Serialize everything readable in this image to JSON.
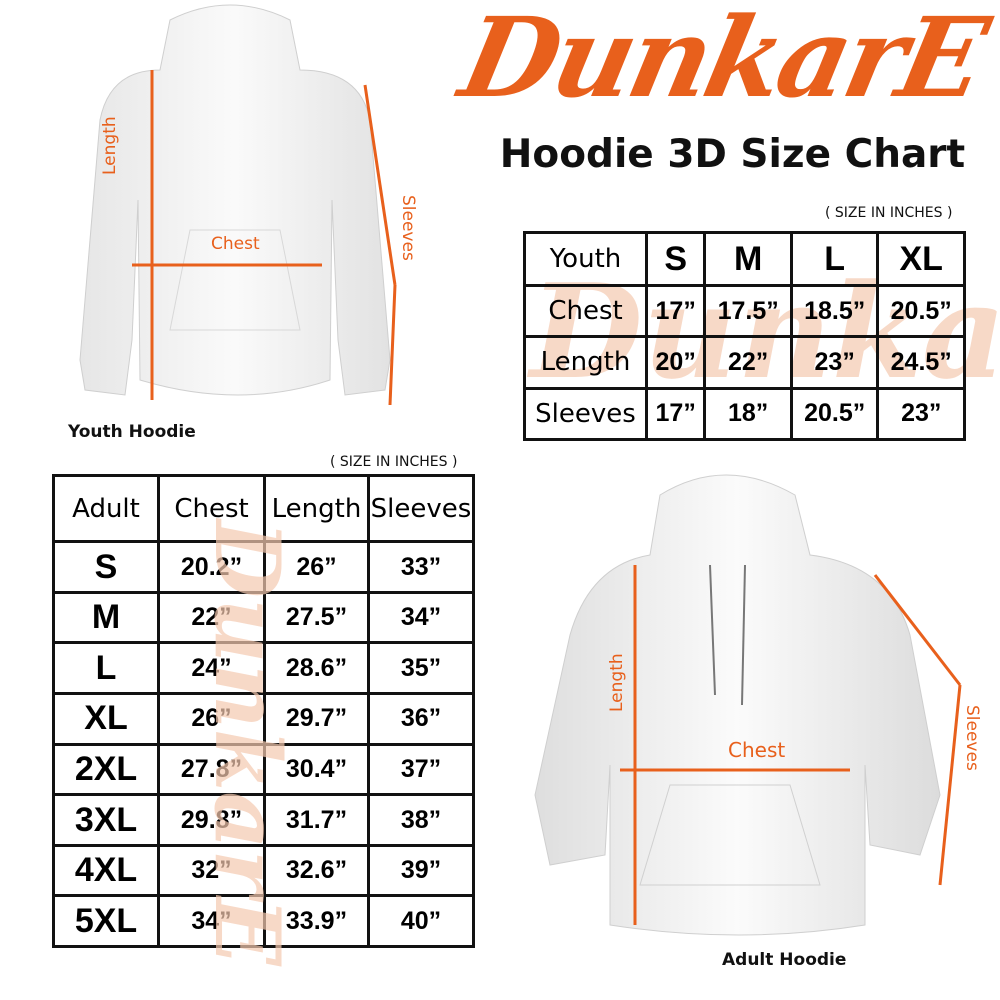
{
  "brand": {
    "logo_text": "DunkarE",
    "color": "#e8601c"
  },
  "title": "Hoodie 3D Size Chart",
  "youth": {
    "unit_note": "( SIZE IN INCHES )",
    "header": [
      "Youth",
      "S",
      "M",
      "L",
      "XL"
    ],
    "rows": [
      {
        "label": "Chest",
        "values": [
          "17”",
          "17.5”",
          "18.5”",
          "20.5”"
        ]
      },
      {
        "label": "Length",
        "values": [
          "20”",
          "22”",
          "23”",
          "24.5”"
        ]
      },
      {
        "label": "Sleeves",
        "values": [
          "17”",
          "18”",
          "20.5”",
          "23”"
        ]
      }
    ],
    "image": {
      "caption": "Youth Hoodie",
      "labels": {
        "length": "Length",
        "chest": "Chest",
        "sleeves": "Sleeves"
      }
    }
  },
  "adult": {
    "unit_note": "( SIZE IN INCHES )",
    "header": [
      "Adult",
      "Chest",
      "Length",
      "Sleeves"
    ],
    "rows": [
      {
        "size": "S",
        "values": [
          "20.2”",
          "26”",
          "33”"
        ]
      },
      {
        "size": "M",
        "values": [
          "22”",
          "27.5”",
          "34”"
        ]
      },
      {
        "size": "L",
        "values": [
          "24”",
          "28.6”",
          "35”"
        ]
      },
      {
        "size": "XL",
        "values": [
          "26”",
          "29.7”",
          "36”"
        ]
      },
      {
        "size": "2XL",
        "values": [
          "27.8”",
          "30.4”",
          "37”"
        ]
      },
      {
        "size": "3XL",
        "values": [
          "29.8”",
          "31.7”",
          "38”"
        ]
      },
      {
        "size": "4XL",
        "values": [
          "32”",
          "32.6”",
          "39”"
        ]
      },
      {
        "size": "5XL",
        "values": [
          "34”",
          "33.9”",
          "40”"
        ]
      }
    ],
    "image": {
      "caption": "Adult Hoodie",
      "labels": {
        "length": "Length",
        "chest": "Chest",
        "sleeves": "Sleeves"
      }
    }
  }
}
